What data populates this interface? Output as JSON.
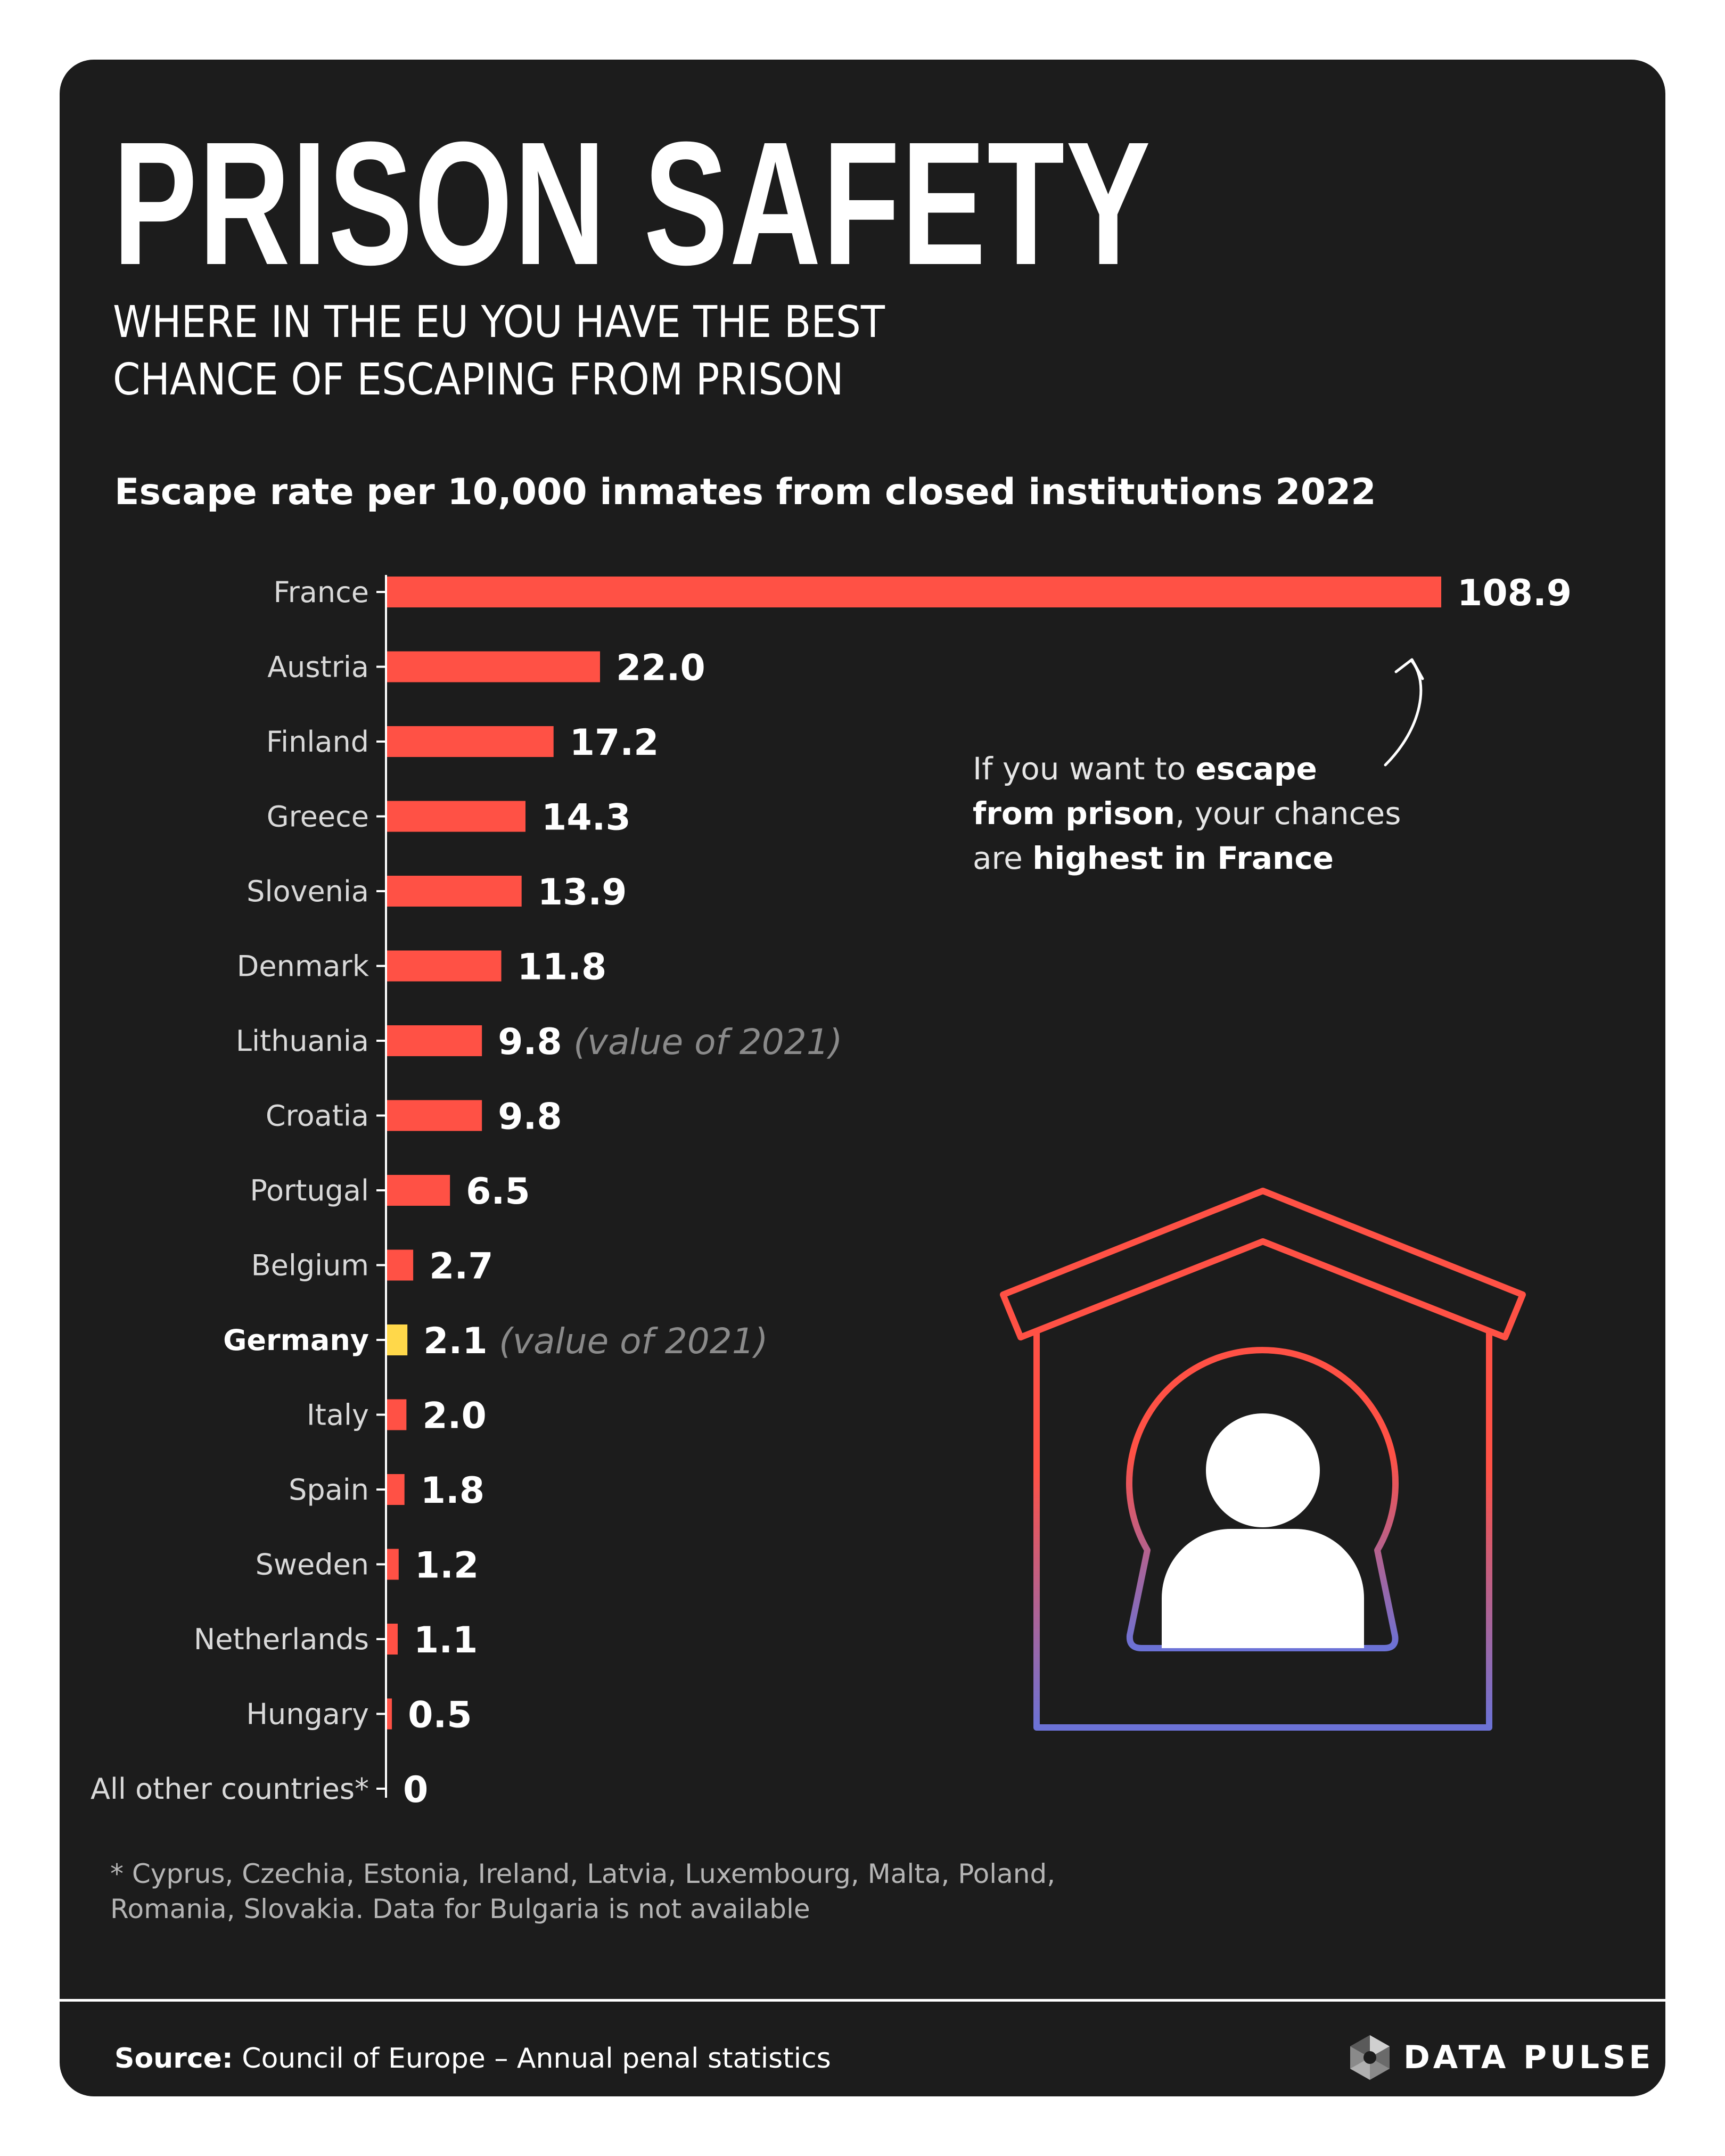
{
  "header": {
    "title": "PRISON SAFETY",
    "subtitle": "WHERE IN THE EU YOU HAVE THE BEST CHANCE OF ESCAPING FROM PRISON"
  },
  "chart_heading": "Escape rate per 10,000 inmates from closed institutions 2022",
  "chart_data": {
    "type": "bar",
    "orientation": "horizontal",
    "title": "Escape rate per 10,000 inmates from closed institutions 2022",
    "categories": [
      "France",
      "Austria",
      "Finland",
      "Greece",
      "Slovenia",
      "Denmark",
      "Lithuania",
      "Croatia",
      "Portugal",
      "Belgium",
      "Germany",
      "Italy",
      "Spain",
      "Sweden",
      "Netherlands",
      "Hungary",
      "All other countries*"
    ],
    "values": [
      108.9,
      22.0,
      17.2,
      14.3,
      13.9,
      11.8,
      9.8,
      9.8,
      6.5,
      2.7,
      2.1,
      2.0,
      1.8,
      1.2,
      1.1,
      0.5,
      0
    ],
    "value_labels": [
      "108.9",
      "22.0",
      "17.2",
      "14.3",
      "13.9",
      "11.8",
      "9.8",
      "9.8",
      "6.5",
      "2.7",
      "2.1",
      "2.0",
      "1.8",
      "1.2",
      "1.1",
      "0.5",
      "0"
    ],
    "notes": [
      "",
      "",
      "",
      "",
      "",
      "",
      "(value of 2021)",
      "",
      "",
      "",
      "(value of 2021)",
      "",
      "",
      "",
      "",
      "",
      ""
    ],
    "highlight_category": "Germany",
    "bar_color": "#ff5145",
    "highlight_color": "#ffd84a",
    "grid": false,
    "xlim": [
      0,
      108.9
    ]
  },
  "annotation": {
    "part1": "If you want to ",
    "bold1": "escape",
    "bold2": "from prison",
    "part2": ", your chances",
    "part3": "are ",
    "bold3": "highest in France"
  },
  "footnote": "* Cyprus, Czechia, Estonia, Ireland, Latvia, Luxembourg, Malta, Poland, Romania, Slovakia. Data for Bulgaria is not available",
  "footer": {
    "source_label": "Source:",
    "source_text": " Council of Europe – Annual penal statistics",
    "brand": "DATA PULSE"
  },
  "icons": {
    "illustration": "prison-house-keyhole-icon",
    "logo": "data-pulse-logo-icon",
    "arrow": "curved-arrow-icon"
  },
  "colors": {
    "background": "#1c1c1c",
    "accent": "#ff5145",
    "highlight": "#ffd84a",
    "gradient_end": "#6b72d6"
  }
}
